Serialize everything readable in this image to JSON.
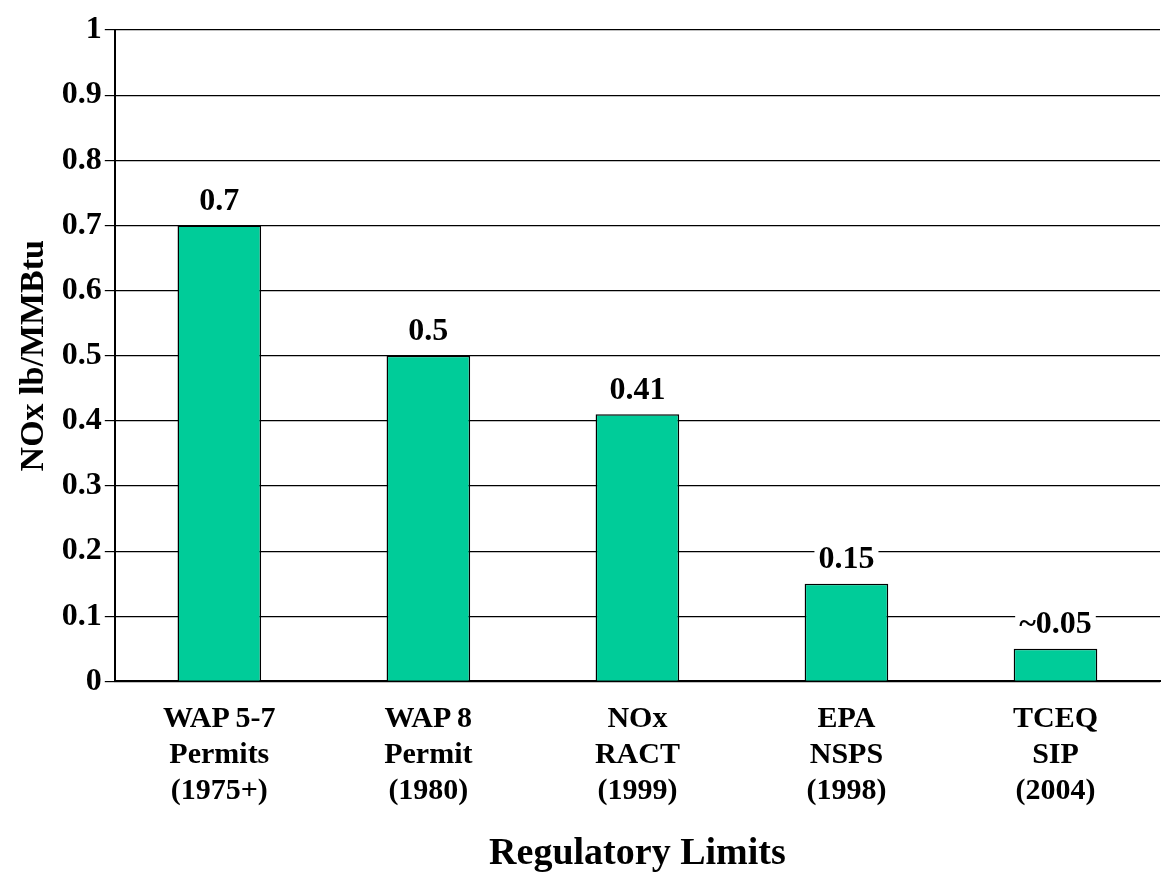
{
  "chart_data": {
    "type": "bar",
    "xlabel": "Regulatory Limits",
    "ylabel": "NOx lb/MMBtu",
    "categories": [
      "WAP 5-7\nPermits\n(1975+)",
      "WAP 8\nPermit\n(1980)",
      "NOx\nRACT\n(1999)",
      "EPA\nNSPS\n(1998)",
      "TCEQ\nSIP\n(2004)"
    ],
    "values": [
      0.7,
      0.5,
      0.41,
      0.15,
      0.05
    ],
    "value_labels": [
      "0.7",
      "0.5",
      "0.41",
      "0.15",
      "~0.05"
    ],
    "color": "#00cc99",
    "ylim": [
      0,
      1
    ],
    "yticks": [
      0,
      0.1,
      0.2,
      0.3,
      0.4,
      0.5,
      0.6,
      0.7,
      0.8,
      0.9,
      1
    ],
    "grid": "y",
    "legend": false
  }
}
